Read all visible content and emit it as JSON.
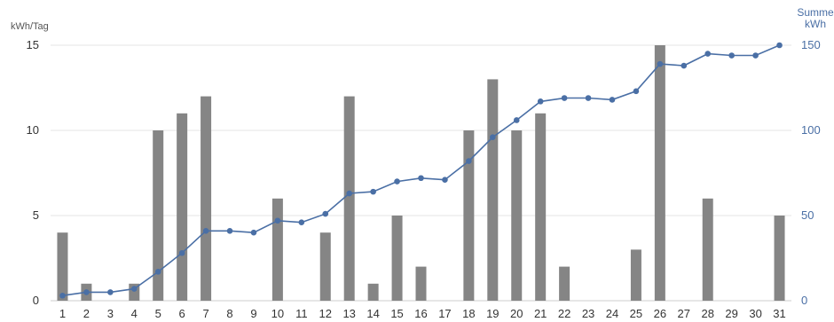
{
  "chart_data": {
    "type": "bar",
    "ylabel_left": "kWh/Tag",
    "ylabel_right_line1": "Summe",
    "ylabel_right_line2": "kWh",
    "left_axis": {
      "ylim": [
        0,
        15
      ],
      "ticks": [
        "0",
        "5",
        "10",
        "15"
      ]
    },
    "right_axis": {
      "ylim": [
        0,
        150
      ],
      "ticks": [
        "0",
        "50",
        "100",
        "150"
      ]
    },
    "categories": [
      "1",
      "2",
      "3",
      "4",
      "5",
      "6",
      "7",
      "8",
      "9",
      "10",
      "11",
      "12",
      "13",
      "14",
      "15",
      "16",
      "17",
      "18",
      "19",
      "20",
      "21",
      "22",
      "23",
      "24",
      "25",
      "26",
      "27",
      "28",
      "29",
      "30",
      "31"
    ],
    "series": [
      {
        "kind": "bar",
        "axis": "left",
        "color": "#858585",
        "values": [
          4,
          1,
          0,
          1,
          10,
          11,
          12,
          0,
          0,
          6,
          0,
          4,
          12,
          1,
          5,
          2,
          0,
          10,
          13,
          10,
          11,
          2,
          0,
          0,
          3,
          15,
          0,
          6,
          0,
          0,
          5
        ]
      },
      {
        "kind": "line",
        "axis": "right",
        "color": "#4a6fa5",
        "values": [
          3,
          5,
          5,
          7,
          17,
          28,
          41,
          41,
          40,
          47,
          46,
          51,
          63,
          64,
          70,
          72,
          71,
          82,
          96,
          106,
          117,
          119,
          119,
          118,
          123,
          139,
          138,
          145,
          144,
          144,
          150
        ]
      }
    ],
    "grid": true
  },
  "colors": {
    "grid": "#e6e6e6",
    "baseline": "#cccccc",
    "right_axis_text": "#4a6fa5"
  }
}
